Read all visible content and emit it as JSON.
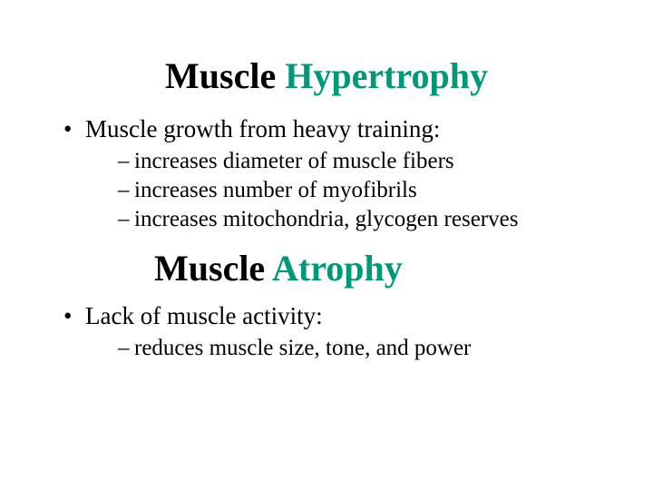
{
  "colors": {
    "black": "#000000",
    "green": "#009978",
    "background": "#ffffff"
  },
  "typography": {
    "title_fontsize": 40,
    "bullet_fontsize": 27,
    "sub_fontsize": 25,
    "font_family": "Times New Roman"
  },
  "section1": {
    "title_part1": "Muscle ",
    "title_part2": "Hypertrophy",
    "bullet": "Muscle growth from heavy training:",
    "subs": [
      "increases diameter of muscle fibers",
      "increases number of myofibrils",
      "increases mitochondria, glycogen reserves"
    ]
  },
  "section2": {
    "title_part1": "Muscle ",
    "title_part2": "Atrophy",
    "bullet": "Lack of muscle activity:",
    "subs": [
      "reduces muscle size, tone, and power"
    ]
  }
}
